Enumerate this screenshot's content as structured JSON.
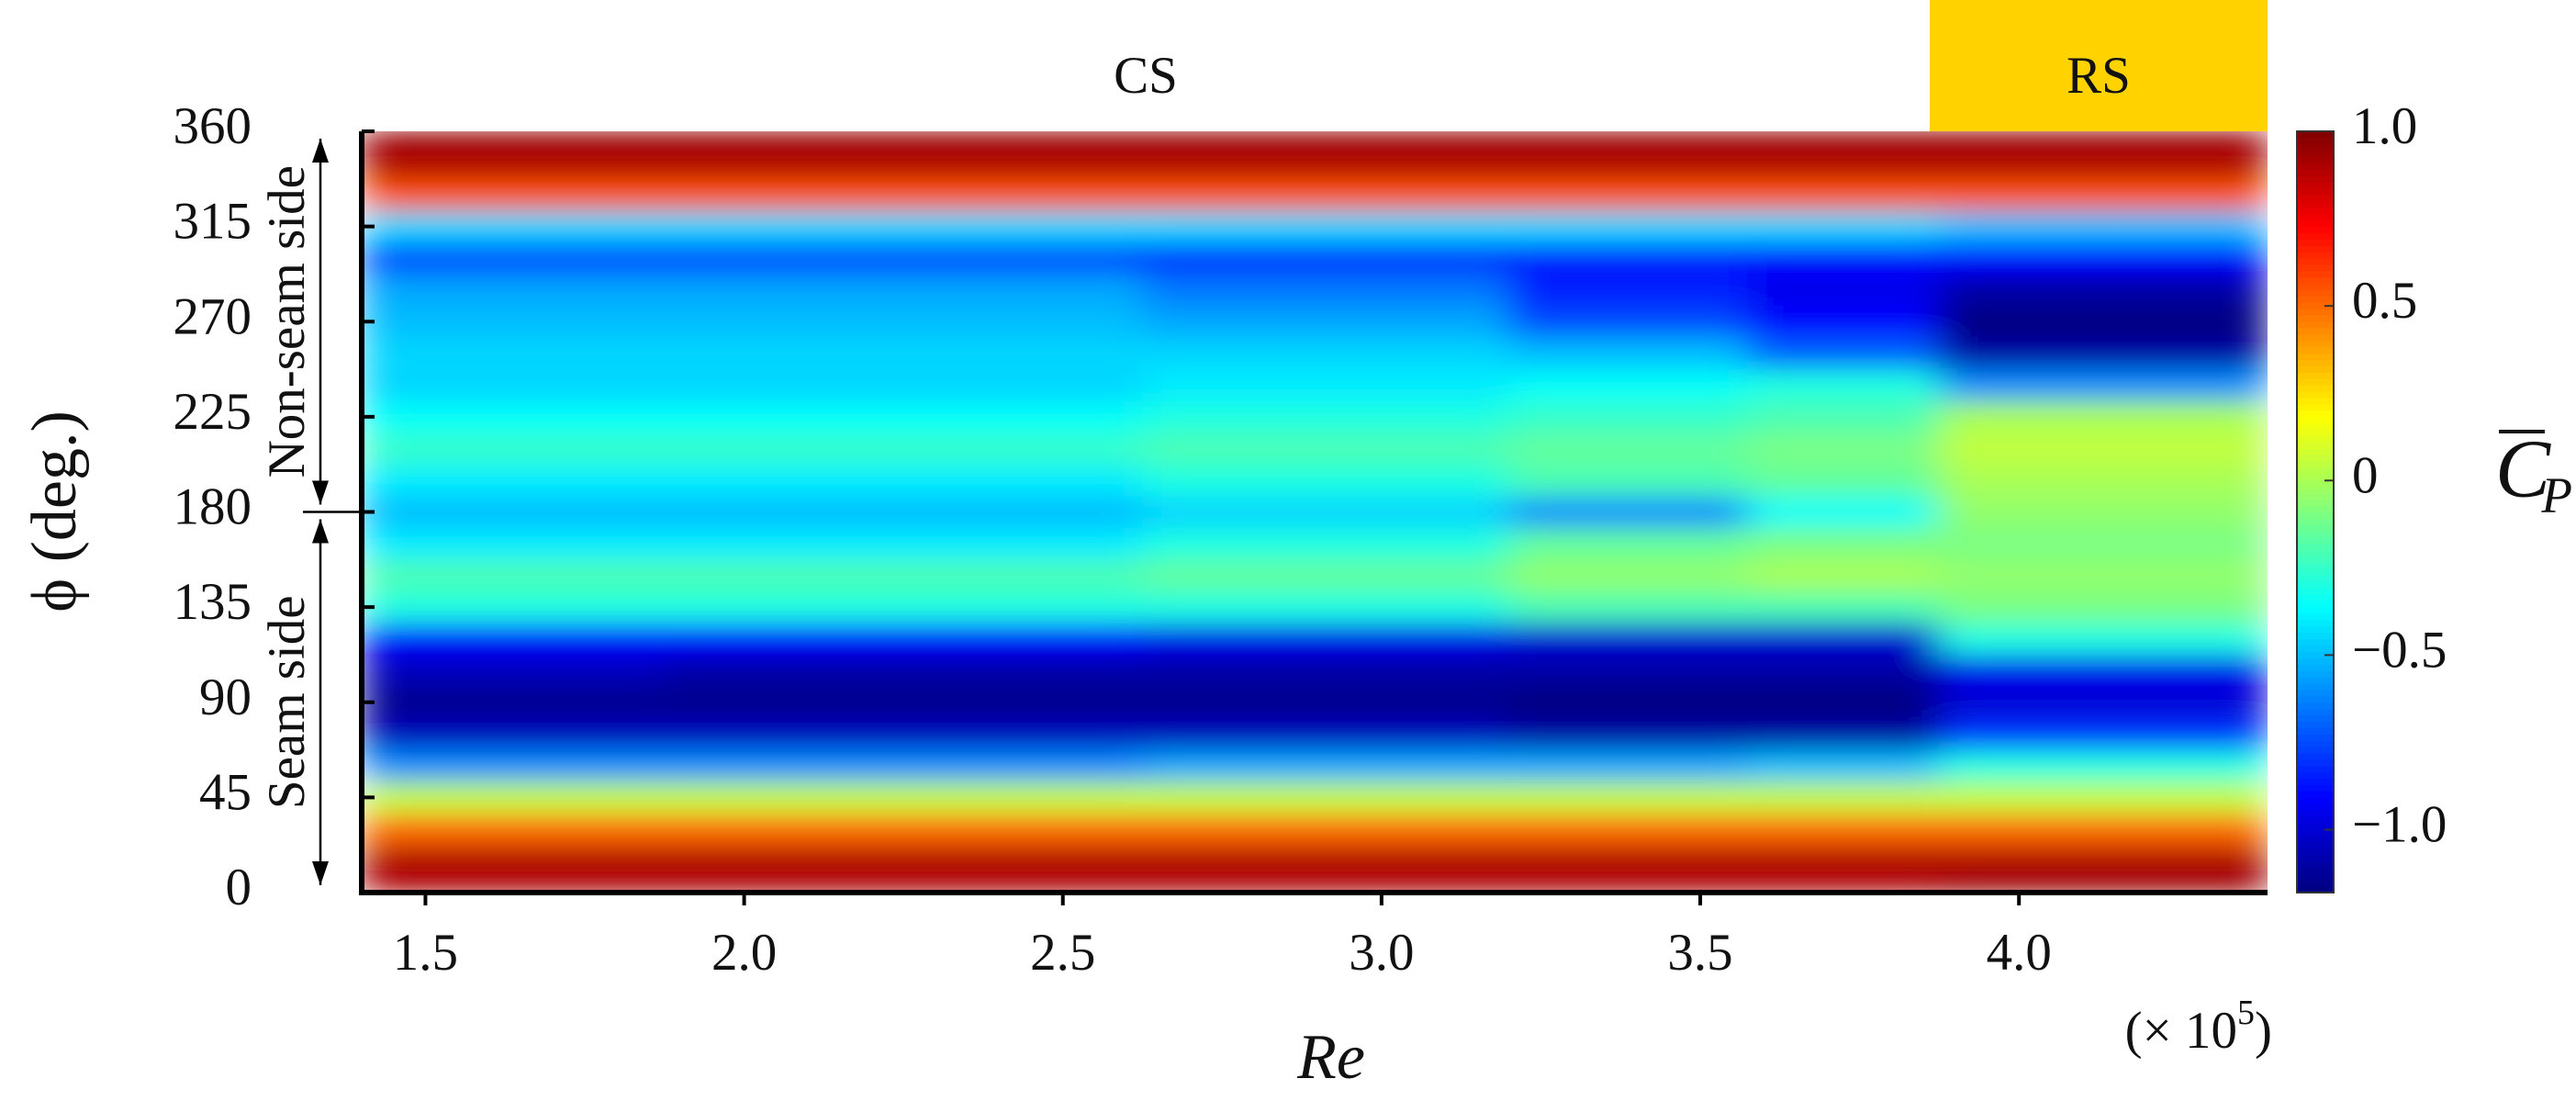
{
  "chart_data": {
    "type": "heatmap",
    "x_label": "Re",
    "y_label": "ϕ (deg.)",
    "x_multiplier": {
      "text": "(× 10",
      "exponent": "5",
      "close": ")"
    },
    "colorbar_label": {
      "symbol": "C",
      "subscript": "P"
    },
    "xlim": [
      1.4,
      4.39
    ],
    "ylim": [
      0,
      360
    ],
    "zlim": [
      -1.18,
      1.0
    ],
    "xticks": [
      1.5,
      {
        "value": 2,
        "label": "2.0"
      },
      2.5,
      {
        "value": 3,
        "label": "3.0"
      },
      3.5,
      {
        "value": 4,
        "label": "4.0"
      }
    ],
    "yticks": [
      0,
      45,
      90,
      135,
      180,
      225,
      270,
      315,
      360
    ],
    "zticks": [
      {
        "value": 1,
        "label": "1.0"
      },
      0.5,
      0,
      {
        "value": -0.5,
        "label": "−0.5"
      },
      {
        "value": -1,
        "label": "−1.0"
      }
    ],
    "colormap": [
      "#00007f",
      "#0000ff",
      "#007fff",
      "#00ffff",
      "#7fff7f",
      "#ffff00",
      "#ff7f00",
      "#ff0000",
      "#7f0000"
    ],
    "regimes": [
      {
        "label": "CS",
        "range": [
          1.4,
          3.86
        ]
      },
      {
        "label": "RS",
        "range": [
          3.86,
          4.39
        ],
        "color": "#ffd200"
      }
    ],
    "side_labels": [
      {
        "label": "Non-seam side",
        "range": [
          180,
          360
        ]
      },
      {
        "label": "Seam side",
        "range": [
          0,
          180
        ]
      }
    ],
    "x": [
      1.5,
      2.25,
      3.0,
      3.4,
      3.75,
      4.0,
      4.3
    ],
    "y": [
      0,
      15,
      30,
      45,
      60,
      75,
      90,
      105,
      120,
      135,
      150,
      165,
      180,
      195,
      210,
      225,
      240,
      255,
      270,
      285,
      300,
      315,
      330,
      345,
      360
    ],
    "values": [
      [
        0.9,
        0.9,
        0.9,
        0.9,
        0.9,
        0.95,
        0.95
      ],
      [
        0.9,
        0.9,
        0.9,
        0.9,
        0.9,
        0.9,
        0.9
      ],
      [
        0.5,
        0.5,
        0.5,
        0.5,
        0.5,
        0.5,
        0.5
      ],
      [
        0.05,
        0.05,
        0.05,
        0.05,
        0.05,
        0.05,
        0.05
      ],
      [
        -0.6,
        -0.6,
        -0.55,
        -0.55,
        -0.5,
        -0.3,
        -0.3
      ],
      [
        -1.05,
        -1.05,
        -1.05,
        -1.1,
        -1.1,
        -0.8,
        -0.8
      ],
      [
        -1.15,
        -1.15,
        -1.15,
        -1.18,
        -1.18,
        -1.0,
        -1.0
      ],
      [
        -1.05,
        -1.1,
        -1.1,
        -1.1,
        -1.1,
        -0.95,
        -0.95
      ],
      [
        -0.9,
        -0.9,
        -0.95,
        -1.0,
        -1.0,
        -0.3,
        -0.3
      ],
      [
        -0.3,
        -0.3,
        -0.3,
        -0.2,
        -0.2,
        -0.1,
        -0.1
      ],
      [
        -0.2,
        -0.2,
        -0.15,
        -0.05,
        0.0,
        -0.05,
        -0.05
      ],
      [
        -0.4,
        -0.4,
        -0.3,
        -0.15,
        -0.1,
        -0.1,
        -0.1
      ],
      [
        -0.5,
        -0.5,
        -0.45,
        -0.6,
        -0.35,
        -0.05,
        -0.05
      ],
      [
        -0.4,
        -0.4,
        -0.3,
        -0.2,
        -0.15,
        0.0,
        0.0
      ],
      [
        -0.25,
        -0.25,
        -0.2,
        -0.15,
        -0.1,
        0.05,
        0.05
      ],
      [
        -0.35,
        -0.35,
        -0.3,
        -0.25,
        -0.2,
        0.0,
        0.0
      ],
      [
        -0.45,
        -0.45,
        -0.4,
        -0.35,
        -0.3,
        -0.6,
        -0.6
      ],
      [
        -0.45,
        -0.45,
        -0.45,
        -0.5,
        -0.7,
        -1.1,
        -1.1
      ],
      [
        -0.5,
        -0.5,
        -0.55,
        -0.75,
        -0.9,
        -1.18,
        -1.18
      ],
      [
        -0.55,
        -0.55,
        -0.65,
        -0.85,
        -0.95,
        -1.1,
        -1.1
      ],
      [
        -0.75,
        -0.75,
        -0.8,
        -0.85,
        -0.9,
        -0.9,
        -0.9
      ],
      [
        -0.45,
        -0.45,
        -0.45,
        -0.45,
        -0.45,
        -0.5,
        -0.5
      ],
      [
        0.55,
        0.55,
        0.55,
        0.55,
        0.55,
        0.55,
        0.55
      ],
      [
        0.9,
        0.9,
        0.9,
        0.9,
        0.9,
        0.9,
        0.9
      ],
      [
        0.95,
        0.95,
        0.95,
        0.95,
        0.95,
        0.95,
        0.95
      ]
    ]
  }
}
